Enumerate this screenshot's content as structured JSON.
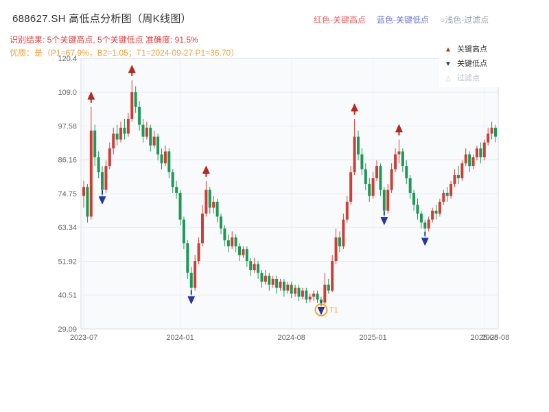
{
  "header": {
    "title": "688627.SH 高低点分析图（周K线图）",
    "legend_inline": [
      {
        "label": "红色-关键高点",
        "color": "#e06262"
      },
      {
        "label": "蓝色-关键低点",
        "color": "#6672de"
      },
      {
        "label": "○浅色-过滤点",
        "color": "#9ba0a8"
      }
    ],
    "result_line": "识别结果: 5个关键高点, 5个关键低点  准确度: 91.5%",
    "quality_line": "优质：是（P1=67.9%，B2=1.05；T1=2024-09-27 P1=36.70）"
  },
  "legend_box": {
    "items": [
      {
        "label": "关键高点",
        "glyph": "▲",
        "color": "#c4251b"
      },
      {
        "label": "关键低点",
        "glyph": "▼",
        "color": "#2336ad"
      },
      {
        "label": "过滤点",
        "glyph": "△",
        "color": "#c9cdd4"
      }
    ]
  },
  "chart_data": {
    "type": "candlestick",
    "title": "688627.SH 高低点分析图（周K线图）",
    "symbol": "688627.SH",
    "period": "weekly",
    "legend_position": "top-right",
    "grid": true,
    "ylim": [
      29.09,
      120.4
    ],
    "y_ticks": [
      "120.4",
      "109.0",
      "97.58",
      "86.16",
      "74.75",
      "63.34",
      "51.92",
      "40.51",
      "29.09"
    ],
    "x_ticks": [
      {
        "label": "2023-07",
        "index": 0
      },
      {
        "label": "2024-01",
        "index": 26
      },
      {
        "label": "2024-08",
        "index": 56
      },
      {
        "label": "2025-01",
        "index": 78
      },
      {
        "label": "2025-08",
        "index": 108
      }
    ],
    "end_label": "2025-08",
    "candles": [
      [
        74,
        79,
        70,
        77
      ],
      [
        77,
        78,
        65,
        67
      ],
      [
        67,
        104,
        66,
        96
      ],
      [
        96,
        98,
        84,
        87
      ],
      [
        87,
        89,
        80,
        82
      ],
      [
        82,
        84,
        74,
        76
      ],
      [
        76,
        86,
        75,
        84
      ],
      [
        84,
        92,
        83,
        90
      ],
      [
        90,
        97,
        88,
        95
      ],
      [
        95,
        98,
        91,
        93
      ],
      [
        93,
        99,
        92,
        97
      ],
      [
        97,
        100,
        93,
        95
      ],
      [
        95,
        102,
        94,
        100
      ],
      [
        100,
        113,
        99,
        109
      ],
      [
        109,
        111,
        102,
        104
      ],
      [
        104,
        106,
        96,
        98
      ],
      [
        98,
        100,
        92,
        94
      ],
      [
        94,
        99,
        93,
        97
      ],
      [
        97,
        98,
        89,
        91
      ],
      [
        91,
        96,
        90,
        94
      ],
      [
        94,
        95,
        86,
        88
      ],
      [
        88,
        90,
        83,
        85
      ],
      [
        85,
        91,
        84,
        89
      ],
      [
        89,
        90,
        80,
        82
      ],
      [
        82,
        83,
        75,
        77
      ],
      [
        77,
        79,
        73,
        75
      ],
      [
        75,
        76,
        64,
        66
      ],
      [
        66,
        67,
        56,
        58
      ],
      [
        58,
        59,
        46,
        48
      ],
      [
        48,
        50,
        40.3,
        43
      ],
      [
        43,
        54,
        42,
        52
      ],
      [
        52,
        60,
        51,
        58
      ],
      [
        58,
        71,
        57,
        68
      ],
      [
        68,
        79,
        67,
        76
      ],
      [
        76,
        77,
        68,
        70
      ],
      [
        70,
        74,
        68,
        72
      ],
      [
        72,
        73,
        65,
        67
      ],
      [
        67,
        68,
        61,
        63
      ],
      [
        63,
        64,
        57,
        59
      ],
      [
        59,
        61,
        55,
        57
      ],
      [
        57,
        62,
        56,
        60
      ],
      [
        60,
        61,
        55,
        57
      ],
      [
        57,
        58,
        52,
        54
      ],
      [
        54,
        57,
        53,
        56
      ],
      [
        56,
        57,
        50,
        52
      ],
      [
        52,
        53,
        47,
        49
      ],
      [
        49,
        53,
        48,
        51
      ],
      [
        51,
        52,
        46,
        48
      ],
      [
        48,
        49,
        43,
        45
      ],
      [
        45,
        49,
        44,
        47
      ],
      [
        47,
        48,
        42,
        44
      ],
      [
        44,
        47,
        43,
        46
      ],
      [
        46,
        47,
        41,
        43
      ],
      [
        43,
        46,
        42,
        45
      ],
      [
        45,
        46,
        40,
        42
      ],
      [
        42,
        45,
        41,
        44
      ],
      [
        44,
        45,
        39.5,
        41
      ],
      [
        41,
        44,
        40,
        43
      ],
      [
        43,
        44,
        38.5,
        40
      ],
      [
        40,
        43,
        39,
        42
      ],
      [
        42,
        43,
        37.8,
        39
      ],
      [
        39,
        41,
        38,
        40
      ],
      [
        40,
        42,
        38.5,
        41
      ],
      [
        41,
        42,
        37.9,
        39
      ],
      [
        39,
        40,
        36.7,
        38
      ],
      [
        38,
        48,
        37.5,
        44
      ],
      [
        44,
        46,
        41,
        42
      ],
      [
        42,
        54,
        41.5,
        52
      ],
      [
        52,
        63,
        51,
        60
      ],
      [
        60,
        62,
        55,
        57
      ],
      [
        57,
        68,
        56,
        66
      ],
      [
        66,
        74,
        65,
        72
      ],
      [
        72,
        84,
        71,
        82
      ],
      [
        82,
        100,
        81,
        94
      ],
      [
        94,
        96,
        86,
        88
      ],
      [
        88,
        90,
        81,
        83
      ],
      [
        83,
        85,
        76,
        78
      ],
      [
        78,
        80,
        72,
        74
      ],
      [
        74,
        82,
        73,
        80
      ],
      [
        80,
        86,
        79,
        84
      ],
      [
        84,
        85,
        74,
        76
      ],
      [
        76,
        77,
        67,
        69
      ],
      [
        69,
        78,
        68,
        76
      ],
      [
        76,
        85,
        75,
        83
      ],
      [
        83,
        90,
        82,
        88
      ],
      [
        88,
        93,
        85,
        89
      ],
      [
        89,
        90,
        82,
        84
      ],
      [
        84,
        86,
        78,
        80
      ],
      [
        80,
        81,
        73,
        75
      ],
      [
        75,
        76,
        69,
        71
      ],
      [
        71,
        73,
        66,
        68
      ],
      [
        68,
        69,
        63,
        65
      ],
      [
        65,
        66,
        60,
        63
      ],
      [
        63,
        67,
        62,
        66
      ],
      [
        66,
        70,
        65,
        69
      ],
      [
        69,
        71,
        66,
        68
      ],
      [
        68,
        73,
        67,
        72
      ],
      [
        72,
        76,
        71,
        75
      ],
      [
        75,
        77,
        72,
        74
      ],
      [
        74,
        79,
        73,
        78
      ],
      [
        78,
        83,
        77,
        81
      ],
      [
        81,
        84,
        78,
        80
      ],
      [
        80,
        86,
        79,
        85
      ],
      [
        85,
        90,
        84,
        88
      ],
      [
        88,
        89,
        82,
        84
      ],
      [
        84,
        88,
        83,
        87
      ],
      [
        87,
        91,
        86,
        90
      ],
      [
        90,
        92,
        85,
        87
      ],
      [
        87,
        93,
        86,
        92
      ],
      [
        92,
        97,
        91,
        95
      ],
      [
        95,
        99,
        93,
        97
      ],
      [
        97,
        98,
        92,
        94
      ]
    ],
    "key_highs": [
      {
        "index": 2,
        "price": 104
      },
      {
        "index": 13,
        "price": 113
      },
      {
        "index": 33,
        "price": 79
      },
      {
        "index": 73,
        "price": 100
      },
      {
        "index": 85,
        "price": 93
      }
    ],
    "key_lows": [
      {
        "index": 5,
        "price": 74
      },
      {
        "index": 29,
        "price": 40.3
      },
      {
        "index": 64,
        "price": 36.7
      },
      {
        "index": 81,
        "price": 67
      },
      {
        "index": 92,
        "price": 60
      }
    ],
    "t1_marker": {
      "index": 64,
      "label": "T1",
      "date": "2024-09-27",
      "price": 36.7
    },
    "colors": {
      "up": "#cd3f35",
      "down": "#1b9a55",
      "key_high": "#c4251b",
      "key_low": "#2336ad",
      "t1": "#f5a623",
      "grid": "#e9eaf0",
      "plot_bg": "#f9fafc"
    }
  }
}
